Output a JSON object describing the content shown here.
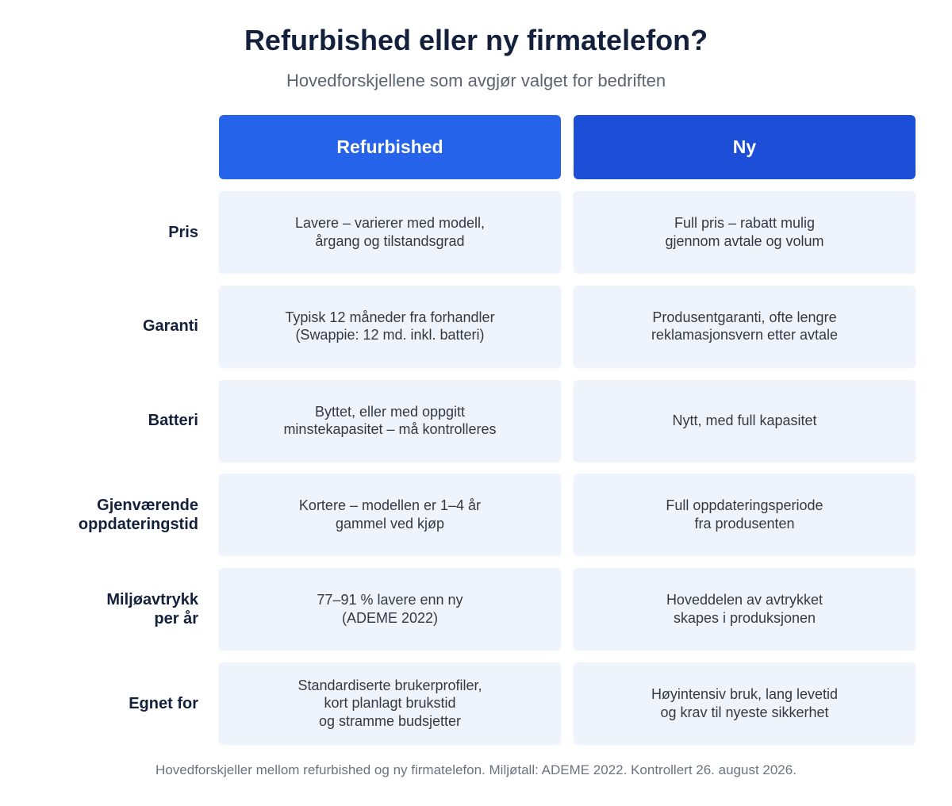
{
  "header": {
    "title": "Refurbished eller ny firmatelefon?",
    "subtitle": "Hovedforskjellene som avgjør valget for bedriften"
  },
  "table": {
    "columns": [
      {
        "label": "Refurbished",
        "color": "#2563eb"
      },
      {
        "label": "Ny",
        "color": "#1d4ed8"
      }
    ],
    "rows": [
      {
        "label": [
          "Pris"
        ],
        "cells": [
          [
            "Lavere – varierer med modell,",
            "årgang og tilstandsgrad"
          ],
          [
            "Full pris – rabatt mulig",
            "gjennom avtale og volum"
          ]
        ]
      },
      {
        "label": [
          "Garanti"
        ],
        "cells": [
          [
            "Typisk 12 måneder fra forhandler",
            "(Swappie: 12 md. inkl. batteri)"
          ],
          [
            "Produsentgaranti, ofte lengre",
            "reklamasjonsvern etter avtale"
          ]
        ]
      },
      {
        "label": [
          "Batteri"
        ],
        "cells": [
          [
            "Byttet, eller med oppgitt",
            "minstekapasitet – må kontrolleres"
          ],
          [
            "Nytt, med full kapasitet"
          ]
        ]
      },
      {
        "label": [
          "Gjenværende",
          "oppdateringstid"
        ],
        "cells": [
          [
            "Kortere – modellen er 1–4 år",
            "gammel ved kjøp"
          ],
          [
            "Full oppdateringsperiode",
            "fra produsenten"
          ]
        ]
      },
      {
        "label": [
          "Miljøavtrykk",
          "per år"
        ],
        "cells": [
          [
            "77–91 % lavere enn ny",
            "(ADEME 2022)"
          ],
          [
            "Hoveddelen av avtrykket",
            "skapes i produksjonen"
          ]
        ]
      },
      {
        "label": [
          "Egnet for"
        ],
        "cells": [
          [
            "Standardiserte brukerprofiler,",
            "kort planlagt brukstid",
            "og stramme budsjetter"
          ],
          [
            "Høyintensiv bruk, lang levetid",
            "og krav til nyeste sikkerhet"
          ]
        ]
      }
    ]
  },
  "footer": "Hovedforskjeller mellom refurbished og ny firmatelefon. Miljøtall: ADEME 2022. Kontrollert 26. august 2026."
}
